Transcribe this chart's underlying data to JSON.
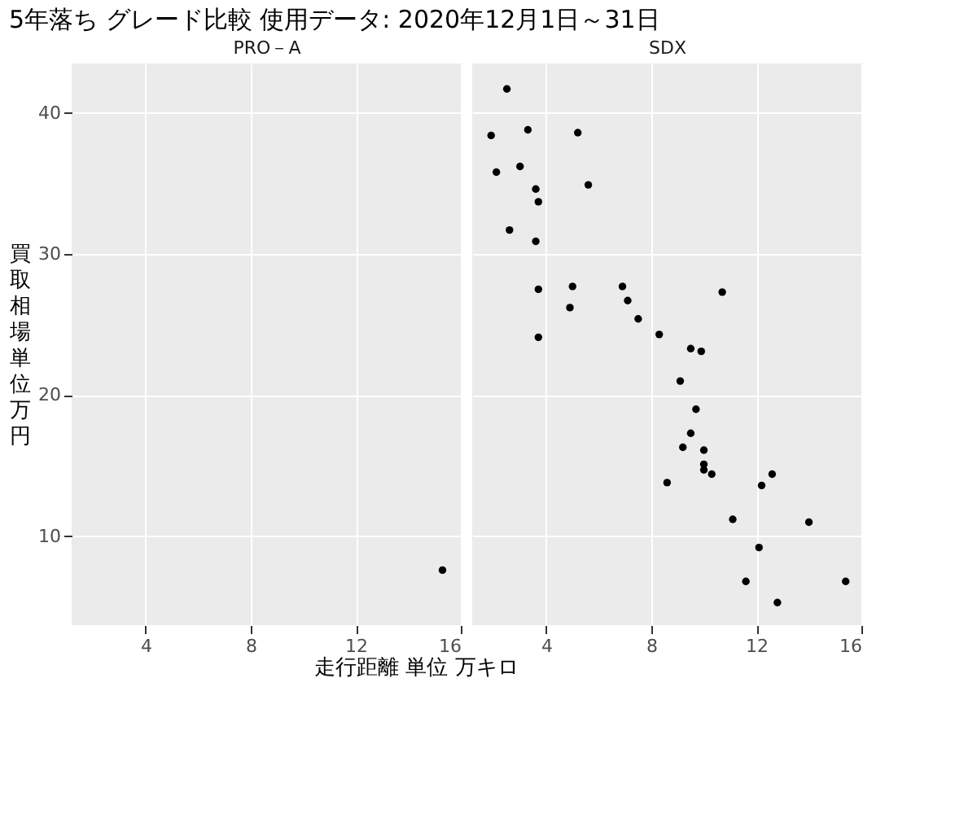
{
  "chart_data": [
    {
      "type": "scatter",
      "title": "5年落ち グレード比較 使用データ: 2020年12月1日～31日",
      "subtitle": "PRO－A",
      "xlabel": "走行距離 単位 万キロ",
      "ylabel": "買取相場単位万円",
      "xlim": [
        1.18,
        16.06
      ],
      "ylim": [
        3.7,
        43.5
      ],
      "xticks": [
        4,
        8,
        12,
        16
      ],
      "yticks": [
        10,
        20,
        30,
        40
      ],
      "grid": true,
      "marker": "circle",
      "series": [
        {
          "color": "#000000",
          "x": [
            15.3
          ],
          "values": [
            7.6
          ]
        }
      ]
    },
    {
      "type": "scatter",
      "subtitle": "SDX",
      "xlim": [
        1.18,
        16.06
      ],
      "ylim": [
        3.7,
        43.5
      ],
      "xticks": [
        4,
        8,
        12,
        16
      ],
      "yticks": [
        10,
        20,
        30,
        40
      ],
      "grid": true,
      "marker": "circle",
      "tick_labels": "x",
      "series": [
        {
          "color": "#000000",
          "x": [
            2.5,
            3.3,
            1.9,
            5.2,
            2.1,
            3.0,
            3.6,
            5.6,
            3.7,
            2.6,
            3.6,
            3.7,
            5.0,
            6.9,
            10.7,
            7.1,
            4.9,
            7.5,
            3.7,
            8.3,
            9.5,
            9.9,
            9.1,
            9.7,
            9.5,
            9.2,
            10.0,
            10.0,
            10.0,
            10.3,
            12.6,
            8.6,
            12.2,
            11.1,
            14.0,
            12.1,
            11.6,
            15.4,
            12.8
          ],
          "values": [
            41.7,
            38.8,
            38.4,
            38.6,
            35.8,
            36.2,
            34.6,
            34.9,
            33.7,
            31.7,
            30.9,
            27.5,
            27.7,
            27.7,
            27.3,
            26.7,
            26.2,
            25.4,
            24.1,
            24.3,
            23.3,
            23.1,
            21.0,
            19.0,
            17.3,
            16.3,
            16.1,
            15.1,
            14.7,
            14.4,
            14.4,
            13.8,
            13.6,
            11.2,
            11.0,
            9.2,
            6.8,
            6.8,
            5.3
          ]
        }
      ]
    }
  ]
}
